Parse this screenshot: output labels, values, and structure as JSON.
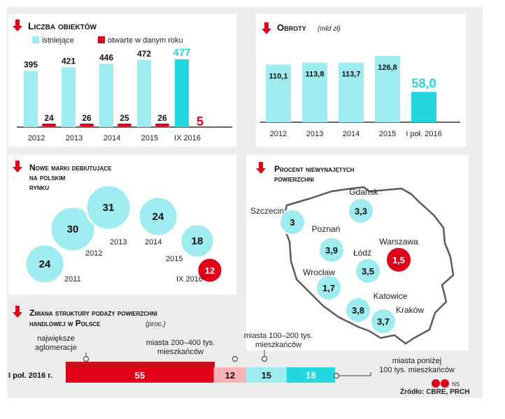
{
  "colors": {
    "teal": "#9fecf0",
    "teal_dark": "#23d6e0",
    "red": "#e0001a",
    "red_dark": "#c8101e",
    "pink": "#f7b3b3",
    "panel_bg": "#ececec",
    "map_fill": "#ffffff",
    "map_stroke": "#5a5a5a"
  },
  "icons": {
    "section_marker": "red-down-arrow-icon",
    "logo": "cp-logo-icon"
  },
  "objects": {
    "title": "Liczba obiektów",
    "legend": [
      "istniejące",
      "otwarte w danym roku"
    ]
  },
  "turnover": {
    "title": "Obroty",
    "unit": "(mld zł)"
  },
  "brands": {
    "title_lines": [
      "Nowe marki debiutujące",
      "na polskim",
      "rynku"
    ]
  },
  "vacancy": {
    "title_lines": [
      "Procent niewynajętych",
      "powierzchni"
    ]
  },
  "structure": {
    "title_lines": [
      "Zmiana struktury podaży powierzchni",
      "handlowej w Polsce"
    ],
    "unit": "(proc.)",
    "row_label": "I poł. 2016 r."
  },
  "credit": "NS",
  "source": "Źródło: CBRE, PRCH",
  "chart_data": [
    {
      "type": "bar",
      "title": "Liczba obiektów",
      "categories": [
        "2012",
        "2013",
        "2014",
        "2015",
        "IX 2016"
      ],
      "series": [
        {
          "name": "istniejące",
          "values": [
            395,
            421,
            446,
            472,
            477
          ]
        },
        {
          "name": "otwarte w danym roku",
          "values": [
            24,
            26,
            25,
            26,
            5
          ]
        }
      ],
      "highlight_last": true
    },
    {
      "type": "bar",
      "title": "Obroty",
      "ylabel": "mld zł",
      "categories": [
        "2012",
        "2013",
        "2014",
        "2015",
        "I poł. 2016"
      ],
      "values": [
        110.1,
        113.8,
        113.7,
        126.8,
        58.0
      ],
      "labels": [
        "110,1",
        "113,8",
        "113,7",
        "126,8",
        "58,0"
      ],
      "highlight_last": true
    },
    {
      "type": "scatter",
      "title": "Nowe marki debiutujące na polskim rynku",
      "x": [
        "2011",
        "2012",
        "2013",
        "2014",
        "2015",
        "IX 2016"
      ],
      "values": [
        24,
        30,
        31,
        24,
        18,
        12
      ],
      "highlight_last": true
    },
    {
      "type": "scatter",
      "title": "Procent niewynajętych powierzchni",
      "categories": [
        "Gdańsk",
        "Szczecin",
        "Poznań",
        "Warszawa",
        "Łódź",
        "Wrocław",
        "Katowice",
        "Kraków"
      ],
      "values": [
        3.3,
        3,
        3.9,
        1.5,
        3.5,
        1.7,
        3.8,
        3.7
      ],
      "labels": [
        "3,3",
        "3",
        "3,9",
        "1,5",
        "3,5",
        "1,7",
        "3,8",
        "3,7"
      ],
      "highlight": "Warszawa"
    },
    {
      "type": "bar",
      "title": "Zmiana struktury podaży powierzchni handlowej w Polsce",
      "ylabel": "proc.",
      "categories": [
        "I poł. 2016 r."
      ],
      "series": [
        {
          "name": "największe aglomeracje",
          "values": [
            55
          ]
        },
        {
          "name": "miasta 200–400 tys. mieszkańców",
          "values": [
            12
          ]
        },
        {
          "name": "miasta 100–200 tys. mieszkańców",
          "values": [
            15
          ]
        },
        {
          "name": "miasta poniżej 100 tys. mieszkańców",
          "values": [
            18
          ]
        }
      ],
      "stacked": true
    }
  ]
}
